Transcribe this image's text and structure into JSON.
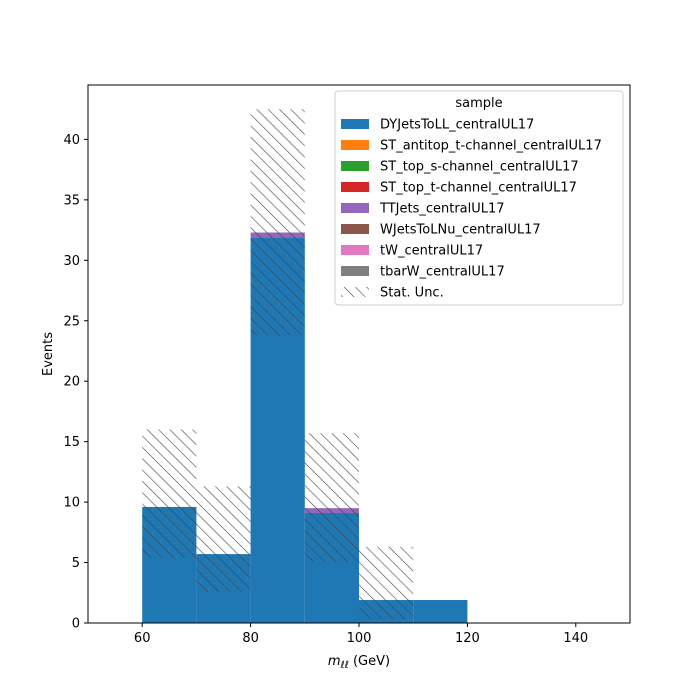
{
  "chart_data": {
    "type": "bar",
    "stacked": true,
    "x_bin_edges": [
      60,
      70,
      80,
      90,
      100,
      110,
      120
    ],
    "xlim": [
      50,
      150
    ],
    "ylim": [
      0,
      44.5
    ],
    "xlabel_var": "m",
    "xlabel_sub": "ℓℓ",
    "xlabel_unit": " (GeV)",
    "ylabel": "Events",
    "x_ticks": [
      60,
      80,
      100,
      120,
      140
    ],
    "y_ticks": [
      0,
      5,
      10,
      15,
      20,
      25,
      30,
      35,
      40
    ],
    "legend_title": "sample",
    "legend_position": "top-right",
    "series": [
      {
        "name": "DYJetsToLL_centralUL17",
        "color": "#1f77b4",
        "values": [
          9.6,
          5.7,
          31.9,
          9.1,
          1.9,
          1.9
        ]
      },
      {
        "name": "ST_antitop_t-channel_centralUL17",
        "color": "#ff7f0e",
        "values": [
          0,
          0,
          0,
          0,
          0,
          0
        ]
      },
      {
        "name": "ST_top_s-channel_centralUL17",
        "color": "#2ca02c",
        "values": [
          0,
          0,
          0,
          0,
          0,
          0
        ]
      },
      {
        "name": "ST_top_t-channel_centralUL17",
        "color": "#d62728",
        "values": [
          0,
          0,
          0,
          0,
          0,
          0
        ]
      },
      {
        "name": "TTJets_centralUL17",
        "color": "#9467bd",
        "values": [
          0,
          0,
          0.4,
          0.4,
          0,
          0
        ]
      },
      {
        "name": "WJetsToLNu_centralUL17",
        "color": "#8c564b",
        "values": [
          0,
          0,
          0,
          0,
          0,
          0
        ]
      },
      {
        "name": "tW_centralUL17",
        "color": "#e377c2",
        "values": [
          0,
          0,
          0,
          0,
          0,
          0
        ]
      },
      {
        "name": "tbarW_centralUL17",
        "color": "#7f7f7f",
        "values": [
          0,
          0,
          0,
          0,
          0,
          0
        ]
      }
    ],
    "uncertainty": {
      "name": "Stat. Unc.",
      "low": [
        5.4,
        2.6,
        23.8,
        5.0,
        0.3,
        1.9
      ],
      "high": [
        16.0,
        11.3,
        42.5,
        15.7,
        6.3,
        1.9
      ]
    }
  }
}
